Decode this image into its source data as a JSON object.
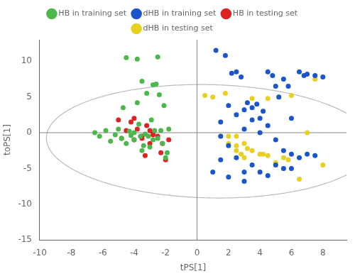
{
  "chart_data": {
    "type": "scatter",
    "xlabel": "tPS[1]",
    "ylabel": "toPS[1]",
    "xlim": [
      -10,
      9.5
    ],
    "ylim": [
      -15,
      13
    ],
    "xticks": [
      -10,
      -8,
      -6,
      -4,
      -2,
      0,
      2,
      4,
      6,
      8
    ],
    "yticks": [
      -15,
      -10,
      -5,
      0,
      5,
      10
    ],
    "grid": false,
    "legend": "top",
    "series": [
      {
        "name": "HB in training set",
        "color": "#4cb84c",
        "values": [
          [
            -6.5,
            0.0
          ],
          [
            -6.2,
            -0.5
          ],
          [
            -5.8,
            0.3
          ],
          [
            -5.5,
            -1.2
          ],
          [
            -5.2,
            -0.3
          ],
          [
            -5.0,
            0.5
          ],
          [
            -4.8,
            -0.8
          ],
          [
            -4.7,
            3.5
          ],
          [
            -4.5,
            -1.5
          ],
          [
            -4.3,
            0.2
          ],
          [
            -4.2,
            -0.4
          ],
          [
            -4.0,
            0.0
          ],
          [
            -4.0,
            -1.0
          ],
          [
            -3.8,
            4.2
          ],
          [
            -3.7,
            1.2
          ],
          [
            -3.6,
            -0.5
          ],
          [
            -3.5,
            -2.5
          ],
          [
            -3.4,
            -1.8
          ],
          [
            -3.3,
            -0.2
          ],
          [
            -3.2,
            5.5
          ],
          [
            -3.1,
            -0.5
          ],
          [
            -3.0,
            -2.0
          ],
          [
            -2.9,
            1.8
          ],
          [
            -2.8,
            -1.0
          ],
          [
            -2.7,
            0.3
          ],
          [
            -2.6,
            6.8
          ],
          [
            -2.5,
            -0.8
          ],
          [
            -2.4,
            5.3
          ],
          [
            -2.3,
            0.3
          ],
          [
            -2.2,
            -1.5
          ],
          [
            -2.1,
            3.8
          ],
          [
            -2.0,
            -3.5
          ],
          [
            -1.9,
            -2.8
          ],
          [
            -1.8,
            0.5
          ],
          [
            -4.5,
            10.5
          ],
          [
            -3.8,
            10.3
          ],
          [
            -2.5,
            10.6
          ],
          [
            -3.5,
            7.2
          ],
          [
            -2.8,
            6.7
          ]
        ]
      },
      {
        "name": "dHB in training set",
        "color": "#1a55cc",
        "values": [
          [
            1.2,
            11.5
          ],
          [
            1.8,
            10.8
          ],
          [
            2.2,
            8.3
          ],
          [
            2.5,
            8.5
          ],
          [
            2.8,
            7.8
          ],
          [
            3.0,
            3.2
          ],
          [
            3.2,
            4.2
          ],
          [
            3.5,
            3.5
          ],
          [
            3.8,
            4.0
          ],
          [
            4.0,
            2.0
          ],
          [
            4.2,
            3.0
          ],
          [
            4.5,
            8.5
          ],
          [
            4.8,
            8.0
          ],
          [
            5.0,
            6.5
          ],
          [
            5.2,
            5.0
          ],
          [
            5.5,
            7.5
          ],
          [
            5.8,
            6.5
          ],
          [
            6.0,
            2.0
          ],
          [
            6.5,
            8.5
          ],
          [
            6.8,
            8.0
          ],
          [
            7.0,
            8.2
          ],
          [
            7.5,
            8.0
          ],
          [
            8.0,
            7.8
          ],
          [
            1.5,
            1.5
          ],
          [
            2.0,
            3.8
          ],
          [
            2.5,
            2.5
          ],
          [
            3.0,
            0.5
          ],
          [
            3.5,
            1.8
          ],
          [
            4.0,
            0.0
          ],
          [
            4.5,
            1.0
          ],
          [
            5.0,
            -1.0
          ],
          [
            5.5,
            -2.5
          ],
          [
            6.0,
            -3.0
          ],
          [
            1.5,
            -0.5
          ],
          [
            2.0,
            -1.8
          ],
          [
            2.5,
            -3.5
          ],
          [
            3.0,
            -5.5
          ],
          [
            3.5,
            -4.5
          ],
          [
            4.0,
            -5.5
          ],
          [
            4.5,
            -6.0
          ],
          [
            5.0,
            -4.5
          ],
          [
            5.5,
            -5.0
          ],
          [
            6.0,
            -5.0
          ],
          [
            6.5,
            -3.5
          ],
          [
            7.0,
            -3.0
          ],
          [
            1.0,
            -5.5
          ],
          [
            1.5,
            -3.8
          ],
          [
            2.0,
            -6.2
          ],
          [
            3.0,
            -6.8
          ],
          [
            7.5,
            -3.2
          ]
        ]
      },
      {
        "name": "HB in testing set",
        "color": "#dd2222",
        "values": [
          [
            -5.0,
            1.8
          ],
          [
            -4.8,
            -0.8
          ],
          [
            -4.5,
            0.3
          ],
          [
            -4.2,
            1.5
          ],
          [
            -4.0,
            2.0
          ],
          [
            -3.8,
            0.5
          ],
          [
            -3.5,
            -0.5
          ],
          [
            -3.3,
            -3.2
          ],
          [
            -3.2,
            1.0
          ],
          [
            -3.0,
            -1.5
          ],
          [
            -2.8,
            0.0
          ],
          [
            -2.5,
            -0.5
          ],
          [
            -2.3,
            -2.8
          ],
          [
            -2.2,
            -1.5
          ],
          [
            -2.0,
            -3.8
          ],
          [
            -1.8,
            -1.0
          ],
          [
            -3.5,
            -0.8
          ],
          [
            -4.0,
            -1.0
          ],
          [
            -3.0,
            0.3
          ],
          [
            -2.8,
            -0.3
          ]
        ]
      },
      {
        "name": "dHB in testing set",
        "color": "#e8d020",
        "values": [
          [
            0.5,
            5.2
          ],
          [
            1.0,
            5.0
          ],
          [
            1.5,
            -0.5
          ],
          [
            2.0,
            -0.5
          ],
          [
            2.0,
            -1.5
          ],
          [
            2.5,
            -1.8
          ],
          [
            2.5,
            -2.5
          ],
          [
            2.8,
            -3.0
          ],
          [
            3.0,
            -1.5
          ],
          [
            3.2,
            -2.2
          ],
          [
            3.5,
            -2.5
          ],
          [
            3.5,
            4.8
          ],
          [
            4.0,
            -3.0
          ],
          [
            4.5,
            -3.2
          ],
          [
            4.5,
            4.8
          ],
          [
            5.0,
            -4.2
          ],
          [
            5.5,
            -3.5
          ],
          [
            5.8,
            -3.8
          ],
          [
            6.0,
            5.2
          ],
          [
            6.5,
            -6.5
          ],
          [
            7.0,
            0.0
          ],
          [
            7.5,
            7.5
          ],
          [
            8.0,
            -4.5
          ],
          [
            1.8,
            5.5
          ],
          [
            2.5,
            -0.5
          ],
          [
            3.0,
            -3.5
          ],
          [
            4.2,
            -3.0
          ],
          [
            5.2,
            5.0
          ]
        ]
      }
    ],
    "ellipse": {
      "center": [
        0.8,
        -1.2
      ],
      "width": 20.8,
      "height": 15.8,
      "angle": -6,
      "color": "#bbbbbb"
    },
    "reference_lines": [
      {
        "axis": "y",
        "value": 0,
        "color": "#888888"
      },
      {
        "axis": "x",
        "value": 0,
        "color": "#888888"
      }
    ]
  }
}
